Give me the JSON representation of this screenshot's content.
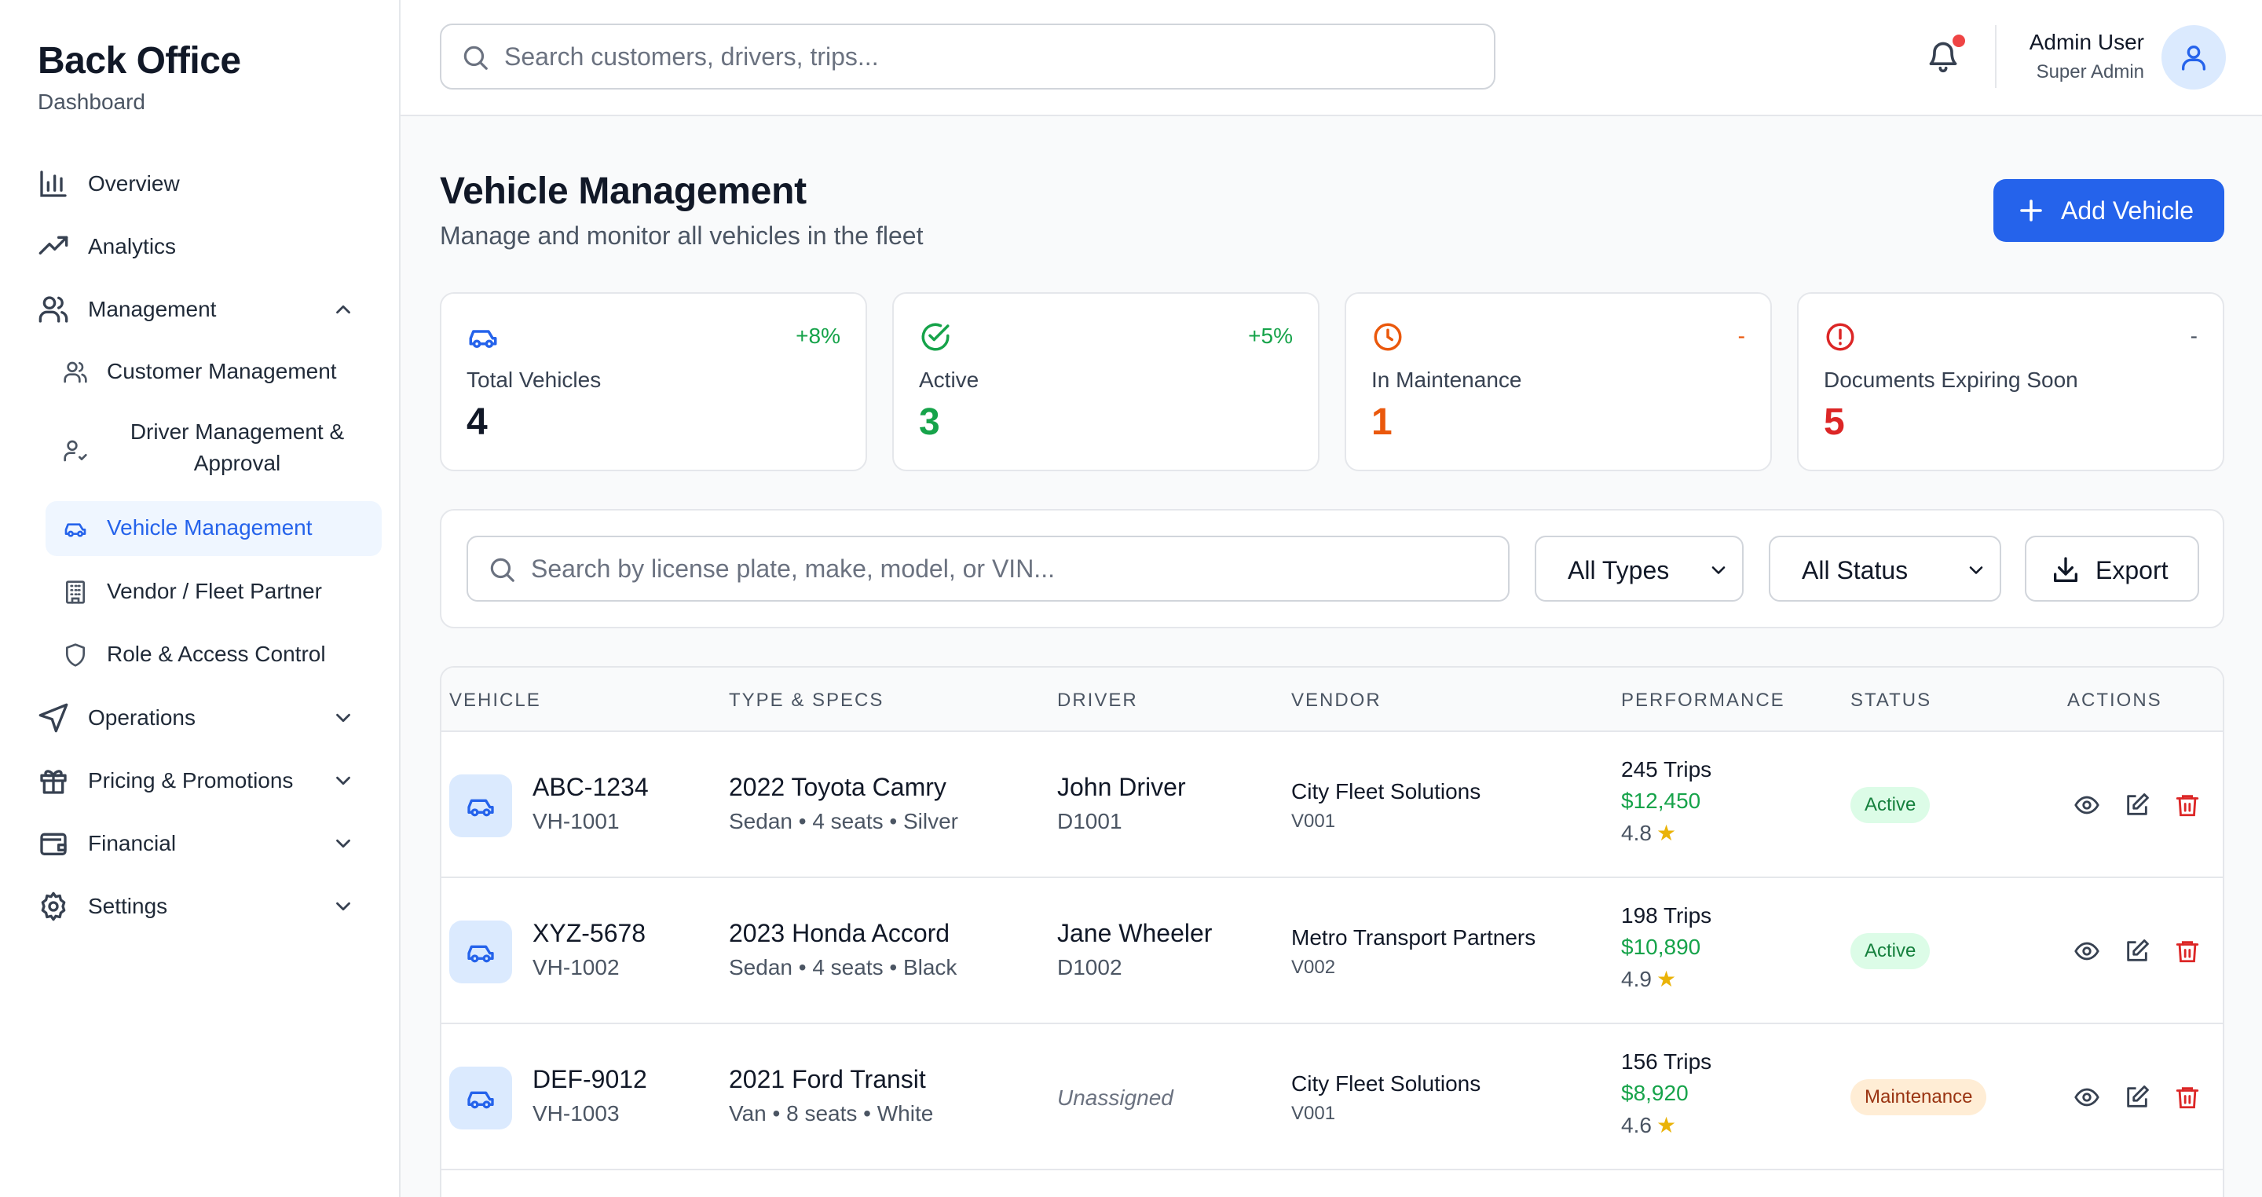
{
  "sidebar": {
    "title": "Back Office",
    "subtitle": "Dashboard",
    "items": [
      {
        "label": "Overview",
        "icon": "bar-chart-icon"
      },
      {
        "label": "Analytics",
        "icon": "trending-up-icon"
      },
      {
        "label": "Management",
        "icon": "users-icon",
        "expanded": true
      },
      {
        "label": "Operations",
        "icon": "send-icon"
      },
      {
        "label": "Pricing & Promotions",
        "icon": "gift-icon"
      },
      {
        "label": "Financial",
        "icon": "wallet-icon"
      },
      {
        "label": "Settings",
        "icon": "gear-icon"
      }
    ],
    "management_sub": [
      {
        "label": "Customer Management",
        "icon": "users-icon"
      },
      {
        "label_line1": "Driver Management &",
        "label_line2": "Approval",
        "icon": "user-check-icon"
      },
      {
        "label": "Vehicle Management",
        "icon": "car-icon",
        "active": true
      },
      {
        "label": "Vendor / Fleet Partner",
        "icon": "building-icon"
      },
      {
        "label": "Role & Access Control",
        "icon": "shield-icon"
      }
    ]
  },
  "header": {
    "search_placeholder": "Search customers, drivers, trips...",
    "user_name": "Admin User",
    "user_role": "Super Admin"
  },
  "page": {
    "title": "Vehicle Management",
    "subtitle": "Manage and monitor all vehicles in the fleet",
    "add_button": "Add Vehicle"
  },
  "stats": [
    {
      "label": "Total Vehicles",
      "value": "4",
      "change": "+8%",
      "color": "#111827",
      "change_color": "#16a34a",
      "icon_color": "#2563eb"
    },
    {
      "label": "Active",
      "value": "3",
      "change": "+5%",
      "color": "#16a34a",
      "change_color": "#16a34a",
      "icon_color": "#16a34a"
    },
    {
      "label": "In Maintenance",
      "value": "1",
      "change": "-",
      "color": "#ea580c",
      "change_color": "#ea580c",
      "icon_color": "#ea580c"
    },
    {
      "label": "Documents Expiring Soon",
      "value": "5",
      "change": "-",
      "color": "#dc2626",
      "change_color": "#4b5563",
      "icon_color": "#dc2626"
    }
  ],
  "filters": {
    "search_placeholder": "Search by license plate, make, model, or VIN...",
    "type_select": "All Types",
    "status_select": "All Status",
    "export_button": "Export"
  },
  "table": {
    "columns": [
      "VEHICLE",
      "TYPE & SPECS",
      "DRIVER",
      "VENDOR",
      "PERFORMANCE",
      "STATUS",
      "ACTIONS"
    ],
    "rows": [
      {
        "plate": "ABC-1234",
        "id": "VH-1001",
        "model": "2022 Toyota Camry",
        "specs": "Sedan • 4 seats • Silver",
        "driver": "John Driver",
        "driver_id": "D1001",
        "vendor": "City Fleet Solutions",
        "vendor_id": "V001",
        "trips": "245 Trips",
        "revenue": "$12,450",
        "rating": "4.8",
        "status": "Active"
      },
      {
        "plate": "XYZ-5678",
        "id": "VH-1002",
        "model": "2023 Honda Accord",
        "specs": "Sedan • 4 seats • Black",
        "driver": "Jane Wheeler",
        "driver_id": "D1002",
        "vendor": "Metro Transport Partners",
        "vendor_id": "V002",
        "trips": "198 Trips",
        "revenue": "$10,890",
        "rating": "4.9",
        "status": "Active"
      },
      {
        "plate": "DEF-9012",
        "id": "VH-1003",
        "model": "2021 Ford Transit",
        "specs": "Van • 8 seats • White",
        "driver": "Unassigned",
        "driver_id": "",
        "vendor": "City Fleet Solutions",
        "vendor_id": "V001",
        "trips": "156 Trips",
        "revenue": "$8,920",
        "rating": "4.6",
        "status": "Maintenance"
      }
    ]
  },
  "colors": {
    "accent": "#2563eb",
    "active_badge_bg": "#dcfce7",
    "active_badge_text": "#15803d",
    "maintenance_badge_bg": "#ffedd5",
    "maintenance_badge_text": "#9a3412",
    "delete": "#dc2626"
  }
}
